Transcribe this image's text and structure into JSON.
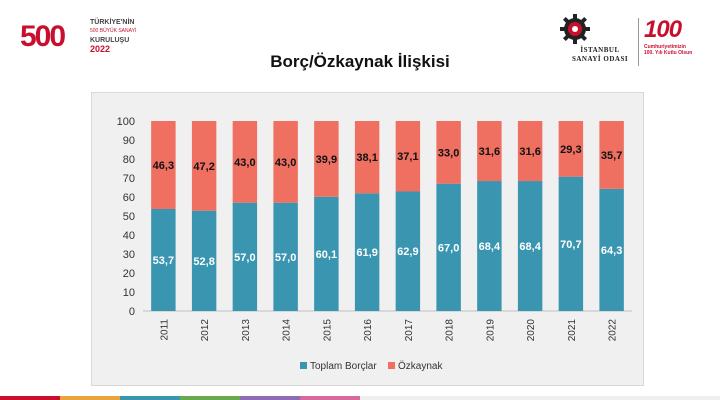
{
  "header": {
    "left_logo": {
      "number": "500",
      "line1": "TÜRKİYE'NİN",
      "line2": "500 BÜYÜK SANAYİ",
      "line3": "KURULUŞU",
      "line4": "2022"
    },
    "right_logo": {
      "org_line1": "İSTANBUL",
      "org_line2": "SANAYİ ODASI",
      "anniv": "100",
      "anniv_line1": "Cumhuriyetimizin",
      "anniv_line2": "100. Yılı Kutlu Olsun"
    }
  },
  "chart_data": {
    "type": "bar",
    "stacked": true,
    "title": "Borç/Özkaynak İlişkisi",
    "categories": [
      "2011",
      "2012",
      "2013",
      "2014",
      "2015",
      "2016",
      "2017",
      "2018",
      "2019",
      "2020",
      "2021",
      "2022"
    ],
    "series": [
      {
        "name": "Toplam Borçlar",
        "color": "#3a95b0",
        "values": [
          53.7,
          52.8,
          57.0,
          57.0,
          60.1,
          61.9,
          62.9,
          67.0,
          68.4,
          68.4,
          70.7,
          64.3
        ],
        "labels": [
          "53,7",
          "52,8",
          "57,0",
          "57,0",
          "60,1",
          "61,9",
          "62,9",
          "67,0",
          "68,4",
          "68,4",
          "70,7",
          "64,3"
        ]
      },
      {
        "name": "Özkaynak",
        "color": "#ef6f61",
        "values": [
          46.3,
          47.2,
          43.0,
          43.0,
          39.9,
          38.1,
          37.1,
          33.0,
          31.6,
          31.6,
          29.3,
          35.7
        ],
        "labels": [
          "46,3",
          "47,2",
          "43,0",
          "43,0",
          "39,9",
          "38,1",
          "37,1",
          "33,0",
          "31,6",
          "31,6",
          "29,3",
          "35,7"
        ]
      }
    ],
    "ylim": [
      0,
      100
    ],
    "yticks": [
      0,
      10,
      20,
      30,
      40,
      50,
      60,
      70,
      80,
      90,
      100
    ],
    "legend_position": "bottom",
    "grid": false
  }
}
